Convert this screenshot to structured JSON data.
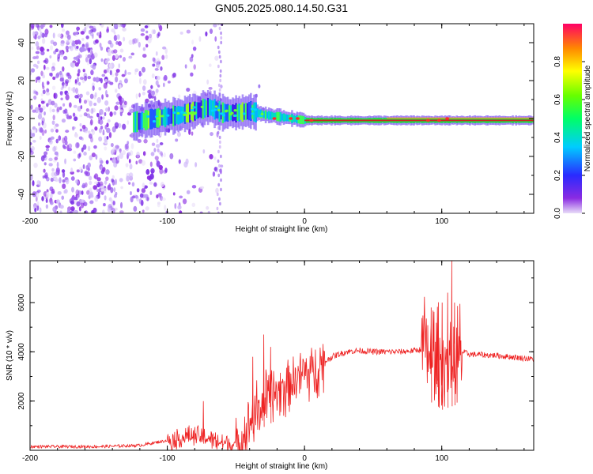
{
  "title": "GN05.2025.080.14.50.G31",
  "colors": {
    "snr_line": "#ee2222",
    "axis": "#000000",
    "signal_core": "#cc2222",
    "noise": "#8a2be2"
  },
  "chart_data": [
    {
      "type": "heatmap",
      "xlabel": "Height of straight line (km)",
      "ylabel": "Frequency (Hz)",
      "xlim": [
        -200,
        167
      ],
      "ylim": [
        -50,
        50
      ],
      "xticks": [
        -200,
        -100,
        0,
        100
      ],
      "yticks": [
        -40,
        -20,
        0,
        20,
        40
      ],
      "colorbar": {
        "label": "Normalized spectral amplitude",
        "range": [
          0,
          1
        ],
        "ticks": [
          "0.0",
          "0.2",
          "0.4",
          "0.6",
          "0.8"
        ]
      },
      "ridge": {
        "x": [
          -125,
          -110,
          -100,
          -90,
          -80,
          -70,
          -60,
          -50,
          -40,
          -30,
          -20,
          -10,
          0,
          20,
          40,
          60,
          80,
          100,
          110,
          130,
          167
        ],
        "y": [
          -2,
          0,
          1,
          2,
          4,
          6,
          3,
          3,
          4,
          2,
          1,
          0,
          -1,
          -1,
          -1,
          -1,
          -1,
          -1,
          -1,
          -1,
          -1
        ]
      },
      "noise_region": [
        -200,
        -60
      ]
    },
    {
      "type": "line",
      "xlabel": "Height of straight line (km)",
      "ylabel": "SNR (10 * v/v)",
      "xlim": [
        -200,
        167
      ],
      "ylim": [
        0,
        7700
      ],
      "xticks": [
        -200,
        -100,
        0,
        100
      ],
      "yticks": [
        2000,
        4000,
        6000
      ],
      "envelope": {
        "x": [
          -200,
          -150,
          -120,
          -100,
          -90,
          -80,
          -70,
          -60,
          -50,
          -45,
          -40,
          -35,
          -30,
          -25,
          -20,
          -15,
          -10,
          -5,
          0,
          5,
          10,
          15,
          20,
          25,
          30,
          40,
          50,
          60,
          70,
          80,
          85,
          90,
          95,
          100,
          105,
          110,
          115,
          120,
          140,
          167
        ],
        "y": [
          150,
          150,
          200,
          400,
          500,
          600,
          500,
          300,
          200,
          500,
          1200,
          1600,
          1900,
          2200,
          2400,
          2600,
          2800,
          3000,
          3100,
          3200,
          3400,
          3600,
          3800,
          3900,
          4000,
          4050,
          4000,
          4000,
          4000,
          4050,
          4100,
          4000,
          3700,
          3300,
          3500,
          3700,
          4000,
          3900,
          3850,
          3700
        ]
      }
    }
  ]
}
